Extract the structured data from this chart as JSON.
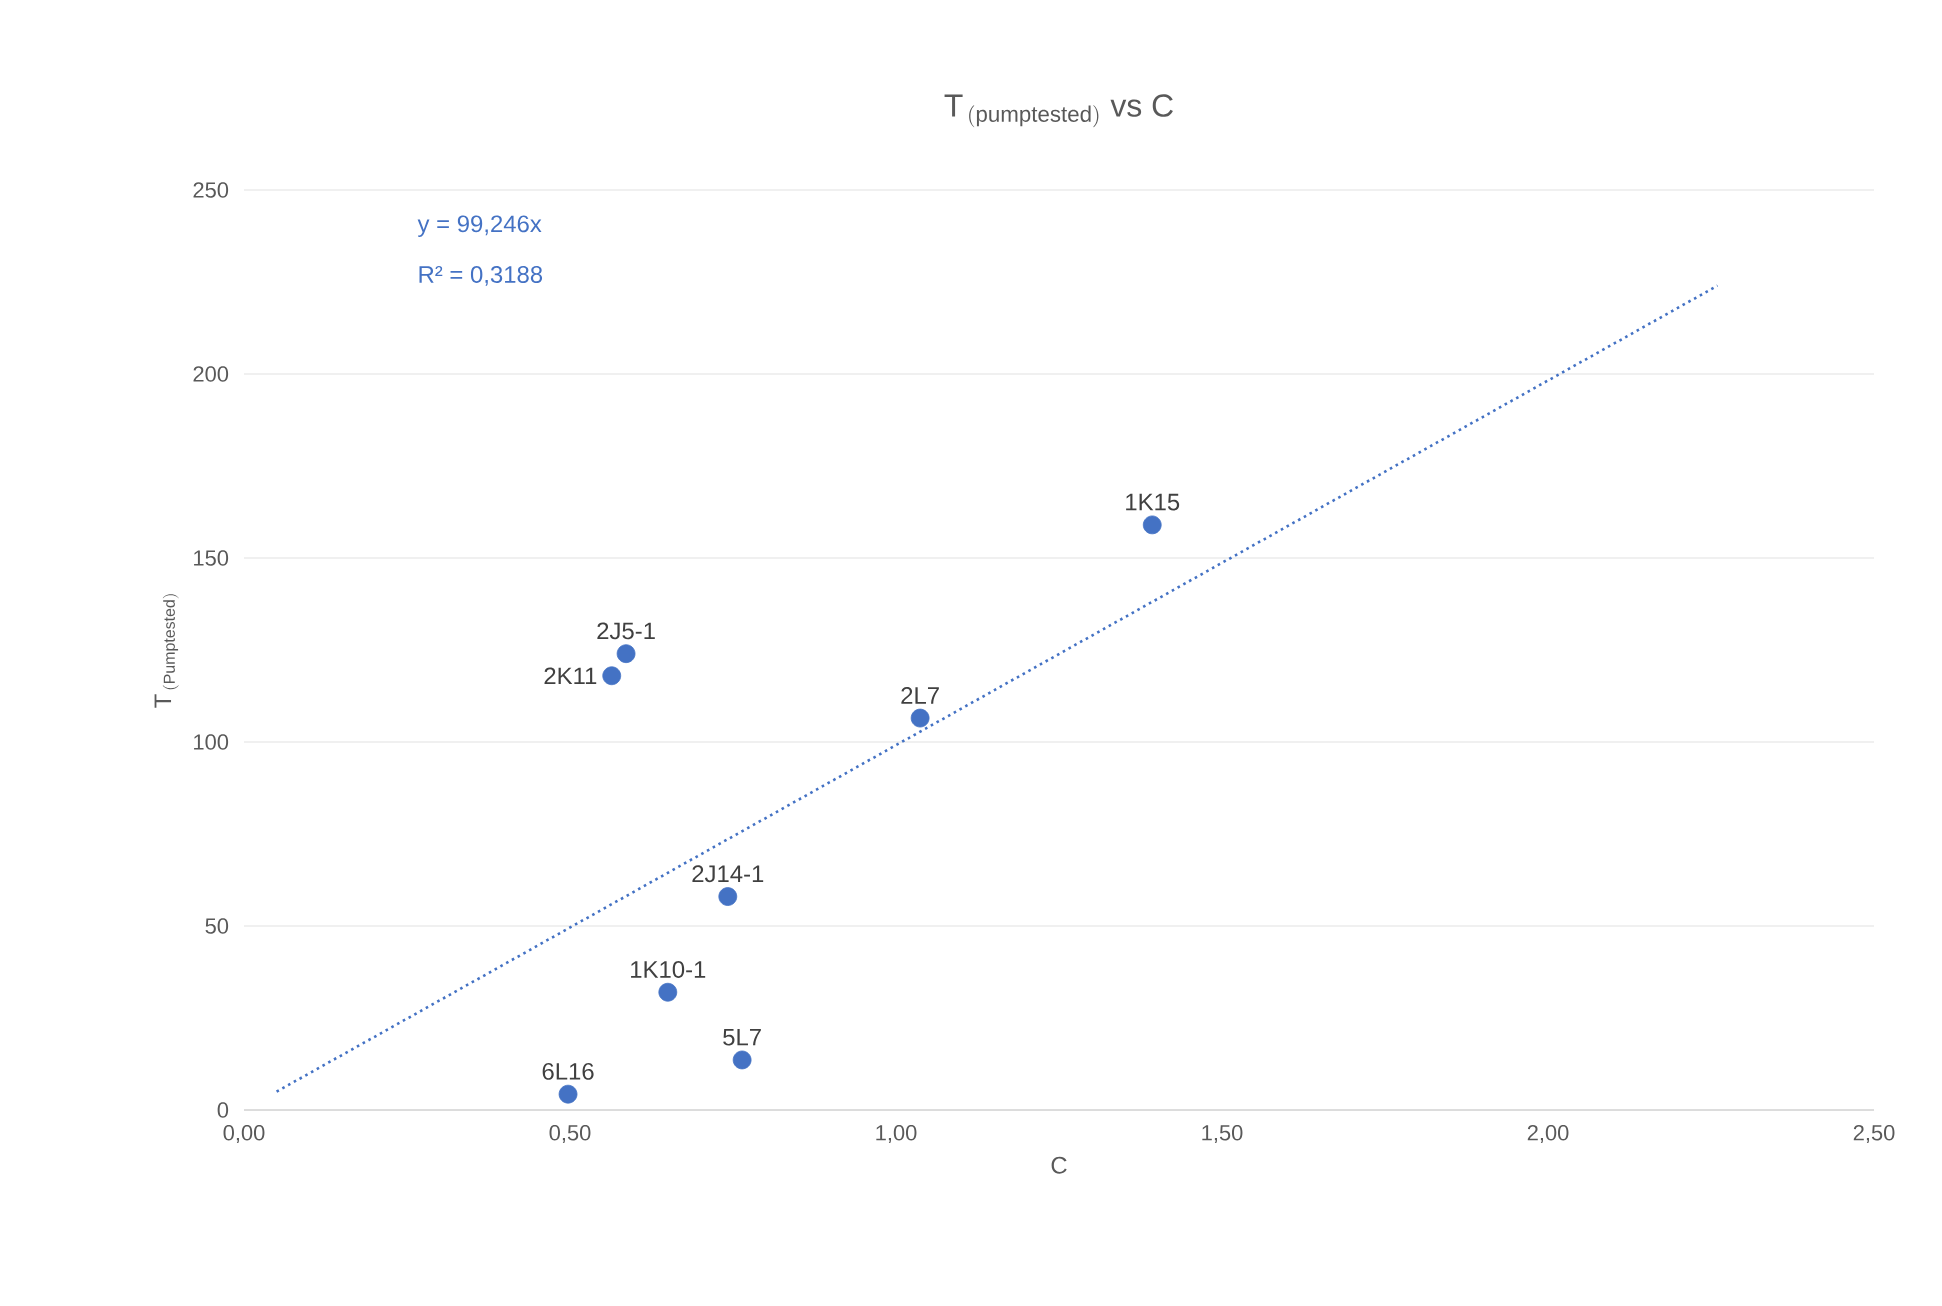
{
  "chart_data": {
    "type": "scatter",
    "title": "\\mathrm{T}_{\\,\\mathrm{(pumptested)}}\\ \\mathrm{vs\\ C}",
    "xlabel": "C",
    "ylabel": "\\mathrm{T}_{\\,\\mathrm{(Pumptested)}}",
    "xlim": [
      0,
      2.5
    ],
    "ylim": [
      0,
      250
    ],
    "xticks": [
      {
        "value": 0,
        "label": "0,00"
      },
      {
        "value": 0.5,
        "label": "0,50"
      },
      {
        "value": 1,
        "label": "1,00"
      },
      {
        "value": 1.5,
        "label": "1,50"
      },
      {
        "value": 2,
        "label": "2,00"
      },
      {
        "value": 2.5,
        "label": "2,50"
      }
    ],
    "yticks": [
      0,
      50,
      100,
      150,
      200,
      250
    ],
    "grid": "y",
    "marker": "circle",
    "series": [
      {
        "color": "#4472c4",
        "x": [
          0.497,
          0.564,
          0.586,
          0.65,
          0.742,
          0.764,
          1.037,
          1.393
        ],
        "values": [
          4.3,
          118,
          124,
          32,
          58,
          13.6,
          106.5,
          159
        ]
      },
      {
        "type": "line",
        "color": "#4472c4",
        "marker": "none",
        "line_style": "dotted",
        "x": [
          0.05,
          2.26
        ],
        "values": [
          5,
          224
        ]
      }
    ],
    "annotations": [
      {
        "text": "6L16",
        "x": 0.497,
        "y": 4.3
      },
      {
        "text": "2K11",
        "x": 0.564,
        "y": 118
      },
      {
        "text": "2J5-1",
        "x": 0.586,
        "y": 124
      },
      {
        "text": "1K10-1",
        "x": 0.65,
        "y": 32
      },
      {
        "text": "2J14-1",
        "x": 0.742,
        "y": 58
      },
      {
        "text": "5L7",
        "x": 0.764,
        "y": 13.6
      },
      {
        "text": "2L7",
        "x": 1.037,
        "y": 106.5
      },
      {
        "text": "1K15",
        "x": 1.393,
        "y": 159
      },
      "y = 99,246x",
      "R² = 0,3188"
    ]
  }
}
